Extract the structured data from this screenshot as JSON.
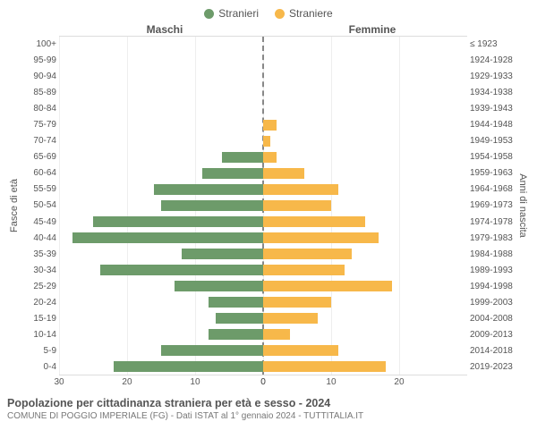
{
  "legend": {
    "male": {
      "label": "Stranieri",
      "color": "#6d9b6a"
    },
    "female": {
      "label": "Straniere",
      "color": "#f7b84a"
    }
  },
  "headers": {
    "left": "Maschi",
    "right": "Femmine"
  },
  "axis_labels": {
    "left": "Fasce di età",
    "right": "Anni di nascita"
  },
  "type": "population-pyramid",
  "xmax": 30,
  "xticks_left": [
    30,
    20,
    10,
    0
  ],
  "xticks_right": [
    0,
    10,
    20
  ],
  "grid_color": "#eeeeee",
  "center_line_color": "#888888",
  "rows": [
    {
      "age": "100+",
      "birth": "≤ 1923",
      "m": 0,
      "f": 0
    },
    {
      "age": "95-99",
      "birth": "1924-1928",
      "m": 0,
      "f": 0
    },
    {
      "age": "90-94",
      "birth": "1929-1933",
      "m": 0,
      "f": 0
    },
    {
      "age": "85-89",
      "birth": "1934-1938",
      "m": 0,
      "f": 0
    },
    {
      "age": "80-84",
      "birth": "1939-1943",
      "m": 0,
      "f": 0
    },
    {
      "age": "75-79",
      "birth": "1944-1948",
      "m": 0,
      "f": 2
    },
    {
      "age": "70-74",
      "birth": "1949-1953",
      "m": 0,
      "f": 1
    },
    {
      "age": "65-69",
      "birth": "1954-1958",
      "m": 6,
      "f": 2
    },
    {
      "age": "60-64",
      "birth": "1959-1963",
      "m": 9,
      "f": 6
    },
    {
      "age": "55-59",
      "birth": "1964-1968",
      "m": 16,
      "f": 11
    },
    {
      "age": "50-54",
      "birth": "1969-1973",
      "m": 15,
      "f": 10
    },
    {
      "age": "45-49",
      "birth": "1974-1978",
      "m": 25,
      "f": 15
    },
    {
      "age": "40-44",
      "birth": "1979-1983",
      "m": 28,
      "f": 17
    },
    {
      "age": "35-39",
      "birth": "1984-1988",
      "m": 12,
      "f": 13
    },
    {
      "age": "30-34",
      "birth": "1989-1993",
      "m": 24,
      "f": 12
    },
    {
      "age": "25-29",
      "birth": "1994-1998",
      "m": 13,
      "f": 19
    },
    {
      "age": "20-24",
      "birth": "1999-2003",
      "m": 8,
      "f": 10
    },
    {
      "age": "15-19",
      "birth": "2004-2008",
      "m": 7,
      "f": 8
    },
    {
      "age": "10-14",
      "birth": "2009-2013",
      "m": 8,
      "f": 4
    },
    {
      "age": "5-9",
      "birth": "2014-2018",
      "m": 15,
      "f": 11
    },
    {
      "age": "0-4",
      "birth": "2019-2023",
      "m": 22,
      "f": 18
    }
  ],
  "title": "Popolazione per cittadinanza straniera per età e sesso - 2024",
  "subtitle": "COMUNE DI POGGIO IMPERIALE (FG) - Dati ISTAT al 1° gennaio 2024 - TUTTITALIA.IT"
}
